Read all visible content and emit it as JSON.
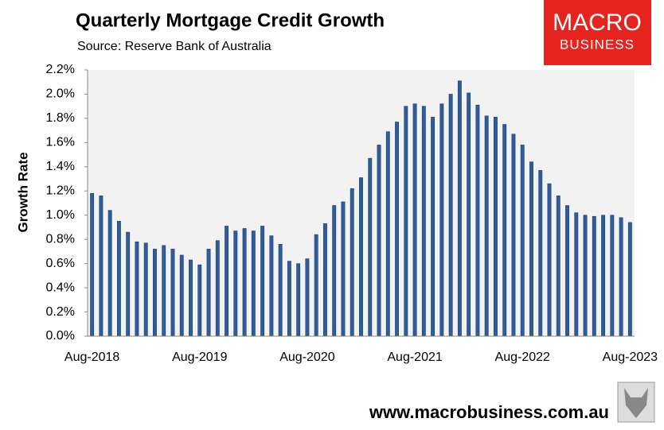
{
  "chart_data": {
    "type": "bar",
    "title": "Quarterly Mortgage Credit Growth",
    "subtitle": "Source: Reserve Bank of Australia",
    "y_label": "Growth Rate",
    "categories": [
      "Aug-2018",
      null,
      null,
      null,
      null,
      null,
      null,
      null,
      null,
      null,
      null,
      null,
      "Aug-2019",
      null,
      null,
      null,
      null,
      null,
      null,
      null,
      null,
      null,
      null,
      null,
      "Aug-2020",
      null,
      null,
      null,
      null,
      null,
      null,
      null,
      null,
      null,
      null,
      null,
      "Aug-2021",
      null,
      null,
      null,
      null,
      null,
      null,
      null,
      null,
      null,
      null,
      null,
      "Aug-2022",
      null,
      null,
      null,
      null,
      null,
      null,
      null,
      null,
      null,
      null,
      null,
      "Aug-2023"
    ],
    "values": [
      1.18,
      1.16,
      1.04,
      0.95,
      0.86,
      0.78,
      0.77,
      0.72,
      0.75,
      0.72,
      0.67,
      0.63,
      0.59,
      0.72,
      0.79,
      0.91,
      0.87,
      0.89,
      0.87,
      0.91,
      0.83,
      0.76,
      0.62,
      0.6,
      0.64,
      0.84,
      0.93,
      1.08,
      1.11,
      1.22,
      1.31,
      1.47,
      1.58,
      1.69,
      1.77,
      1.9,
      1.92,
      1.9,
      1.81,
      1.92,
      2.0,
      2.11,
      2.01,
      1.91,
      1.82,
      1.81,
      1.75,
      1.67,
      1.58,
      1.44,
      1.37,
      1.26,
      1.16,
      1.08,
      1.02,
      1.0,
      0.99,
      1.0,
      1.0,
      0.98,
      0.94
    ],
    "color": "#2f5d9b",
    "ylim": [
      0,
      2.2
    ],
    "yticks": [
      {
        "value": 0,
        "label": "0.0%"
      },
      {
        "value": 0.2,
        "label": "0.2%"
      },
      {
        "value": 0.4,
        "label": "0.4%"
      },
      {
        "value": 0.6,
        "label": "0.6%"
      },
      {
        "value": 0.8,
        "label": "0.8%"
      },
      {
        "value": 1.0,
        "label": "1.0%"
      },
      {
        "value": 1.2,
        "label": "1.2%"
      },
      {
        "value": 1.4,
        "label": "1.4%"
      },
      {
        "value": 1.6,
        "label": "1.6%"
      },
      {
        "value": 1.8,
        "label": "1.8%"
      },
      {
        "value": 2.0,
        "label": "2.0%"
      },
      {
        "value": 2.2,
        "label": "2.2%"
      }
    ],
    "grid": false
  },
  "logo": {
    "line1": "MACRO",
    "line2": "BUSINESS"
  },
  "footer": "www.macrobusiness.com.au"
}
